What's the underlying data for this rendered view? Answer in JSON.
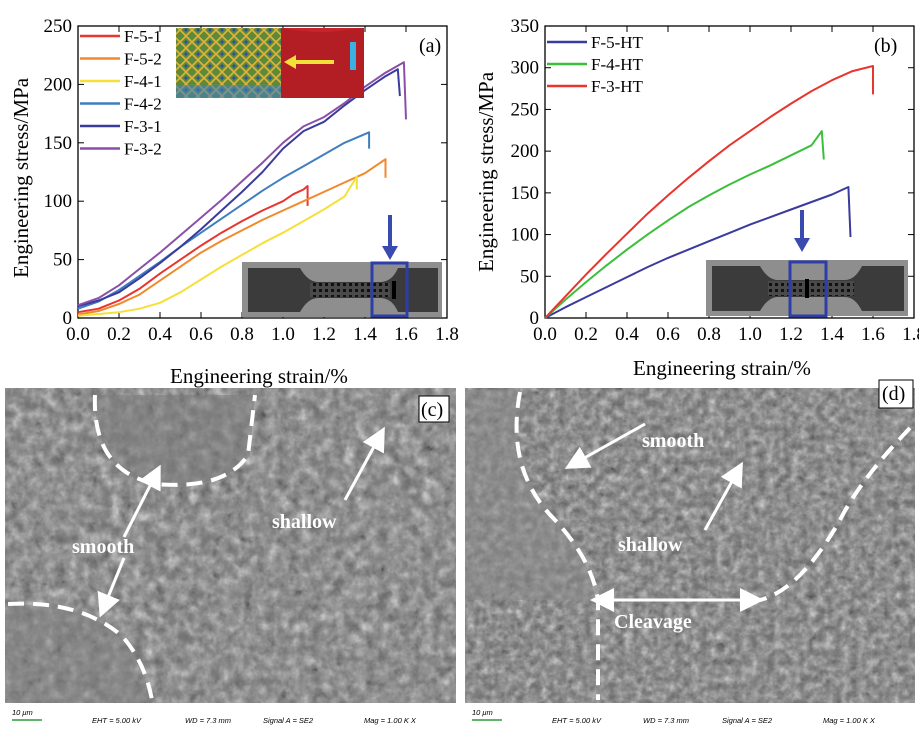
{
  "chart_data": [
    {
      "type": "line",
      "panel_label": "(a)",
      "xlabel": "Engineering strain/%",
      "ylabel": "Engineering stress/MPa",
      "xlim": [
        0,
        1.8
      ],
      "ylim": [
        0,
        250
      ],
      "x_ticks": [
        "0.0",
        "0.2",
        "0.4",
        "0.6",
        "0.8",
        "1.0",
        "1.2",
        "1.4",
        "1.6",
        "1.8"
      ],
      "y_ticks": [
        "0",
        "50",
        "100",
        "150",
        "200",
        "250"
      ],
      "legend_position": "top-left",
      "series": [
        {
          "name": "F-5-1",
          "color": "#e8352e",
          "x": [
            0,
            0.1,
            0.2,
            0.3,
            0.4,
            0.5,
            0.6,
            0.7,
            0.8,
            0.9,
            1.0,
            1.05,
            1.1,
            1.12,
            1.12
          ],
          "y": [
            5,
            8,
            15,
            25,
            38,
            50,
            62,
            73,
            83,
            92,
            100,
            106,
            110,
            113,
            96
          ]
        },
        {
          "name": "F-5-2",
          "color": "#f08a2c",
          "x": [
            0,
            0.1,
            0.2,
            0.3,
            0.4,
            0.5,
            0.6,
            0.7,
            0.8,
            0.9,
            1.0,
            1.1,
            1.2,
            1.3,
            1.4,
            1.45,
            1.5,
            1.5
          ],
          "y": [
            3,
            6,
            12,
            20,
            32,
            44,
            56,
            66,
            75,
            84,
            92,
            100,
            108,
            116,
            124,
            130,
            136,
            120
          ]
        },
        {
          "name": "F-4-1",
          "color": "#f5e03a",
          "x": [
            0,
            0.2,
            0.3,
            0.4,
            0.5,
            0.6,
            0.7,
            0.8,
            0.9,
            1.0,
            1.1,
            1.2,
            1.3,
            1.36,
            1.36
          ],
          "y": [
            2,
            5,
            8,
            13,
            22,
            33,
            44,
            54,
            64,
            73,
            83,
            93,
            104,
            121,
            110
          ]
        },
        {
          "name": "F-4-2",
          "color": "#3f7fbf",
          "x": [
            0,
            0.1,
            0.2,
            0.3,
            0.4,
            0.5,
            0.6,
            0.7,
            0.8,
            0.9,
            1.0,
            1.1,
            1.2,
            1.3,
            1.42,
            1.42
          ],
          "y": [
            8,
            14,
            24,
            36,
            48,
            61,
            73,
            85,
            97,
            109,
            120,
            130,
            140,
            150,
            159,
            145
          ]
        },
        {
          "name": "F-3-1",
          "color": "#3a3b9c",
          "x": [
            0,
            0.1,
            0.2,
            0.3,
            0.4,
            0.5,
            0.6,
            0.7,
            0.8,
            0.9,
            1.0,
            1.1,
            1.2,
            1.3,
            1.4,
            1.5,
            1.56,
            1.57
          ],
          "y": [
            10,
            15,
            22,
            34,
            47,
            61,
            76,
            92,
            108,
            125,
            145,
            160,
            168,
            182,
            195,
            207,
            213,
            190
          ]
        },
        {
          "name": "F-3-2",
          "color": "#8a4fa8",
          "x": [
            0,
            0.1,
            0.2,
            0.3,
            0.4,
            0.5,
            0.6,
            0.7,
            0.8,
            0.9,
            1.0,
            1.1,
            1.2,
            1.3,
            1.4,
            1.5,
            1.59,
            1.6
          ],
          "y": [
            11,
            17,
            28,
            42,
            56,
            71,
            86,
            101,
            117,
            133,
            150,
            164,
            172,
            184,
            198,
            210,
            219,
            170
          ]
        }
      ],
      "inset_arrow_label": ""
    },
    {
      "type": "line",
      "panel_label": "(b)",
      "xlabel": "Engineering strain/%",
      "ylabel": "Engineering stress/MPa",
      "xlim": [
        0,
        1.8
      ],
      "ylim": [
        0,
        350
      ],
      "x_ticks": [
        "0.0",
        "0.2",
        "0.4",
        "0.6",
        "0.8",
        "1.0",
        "1.2",
        "1.4",
        "1.6",
        "1.8"
      ],
      "y_ticks": [
        "0",
        "50",
        "100",
        "150",
        "200",
        "250",
        "300",
        "350"
      ],
      "legend_position": "top-left",
      "series": [
        {
          "name": "F-5-HT",
          "color": "#3a3b9c",
          "x": [
            0,
            0.1,
            0.2,
            0.3,
            0.4,
            0.5,
            0.6,
            0.7,
            0.8,
            0.9,
            1.0,
            1.1,
            1.2,
            1.3,
            1.4,
            1.48,
            1.49
          ],
          "y": [
            0,
            13,
            25,
            37,
            49,
            61,
            72,
            82,
            92,
            102,
            112,
            121,
            130,
            139,
            148,
            157,
            97
          ]
        },
        {
          "name": "F-4-HT",
          "color": "#3bbf3b",
          "x": [
            0,
            0.1,
            0.2,
            0.3,
            0.4,
            0.5,
            0.6,
            0.7,
            0.8,
            0.9,
            1.0,
            1.1,
            1.2,
            1.3,
            1.35,
            1.36
          ],
          "y": [
            0,
            22,
            43,
            63,
            82,
            100,
            117,
            133,
            147,
            160,
            172,
            183,
            195,
            207,
            224,
            190
          ]
        },
        {
          "name": "F-3-HT",
          "color": "#e8352e",
          "x": [
            0,
            0.1,
            0.2,
            0.3,
            0.4,
            0.5,
            0.6,
            0.7,
            0.8,
            0.9,
            1.0,
            1.1,
            1.2,
            1.3,
            1.4,
            1.5,
            1.6,
            1.6
          ],
          "y": [
            0,
            26,
            52,
            77,
            101,
            125,
            147,
            168,
            188,
            207,
            224,
            241,
            257,
            272,
            285,
            296,
            302,
            268
          ]
        }
      ]
    }
  ],
  "sem": {
    "c": {
      "label": "(c)",
      "annotations": [
        "smooth",
        "shallow"
      ]
    },
    "d": {
      "label": "(d)",
      "annotations": [
        "smooth",
        "shallow",
        "Cleavage"
      ]
    },
    "footer": {
      "scale": "10 μm",
      "eht": "EHT = 5.00 kV",
      "wd": "WD = 7.3 mm",
      "signal": "Signal A = SE2",
      "mag": "Mag = 1.00 K X"
    }
  }
}
